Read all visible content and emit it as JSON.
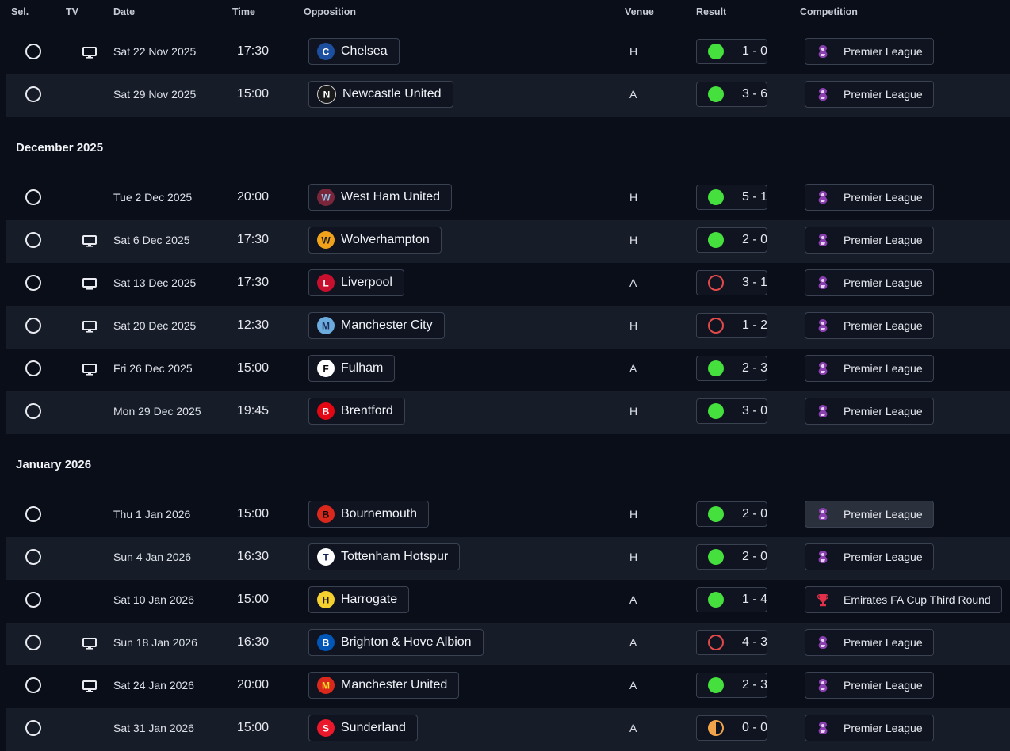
{
  "columns": {
    "sel": "Sel.",
    "tv": "TV",
    "date": "Date",
    "time": "Time",
    "opposition": "Opposition",
    "venue": "Venue",
    "result": "Result",
    "competition": "Competition"
  },
  "colors": {
    "win": "#45e03d",
    "loss": "#e24a4a",
    "draw": "#f2a44a",
    "background": "#0a0e19",
    "row_alt": "#161c28"
  },
  "icons": {
    "tv": "tv-icon",
    "premier_league": "premier-league-icon",
    "fa_cup": "fa-cup-icon"
  },
  "groups": [
    {
      "month": "",
      "fixtures": [
        {
          "tv": true,
          "date": "Sat 22 Nov 2025",
          "time": "17:30",
          "opponent": "Chelsea",
          "crest": "chelsea-crest-icon",
          "venue": "H",
          "outcome": "win",
          "score": "1 - 0",
          "competition": "Premier League",
          "comp_icon": "premier-league-icon"
        },
        {
          "tv": false,
          "date": "Sat 29 Nov 2025",
          "time": "15:00",
          "opponent": "Newcastle United",
          "crest": "newcastle-crest-icon",
          "venue": "A",
          "outcome": "win",
          "score": "3 - 6",
          "competition": "Premier League",
          "comp_icon": "premier-league-icon"
        }
      ]
    },
    {
      "month": "December 2025",
      "fixtures": [
        {
          "tv": false,
          "date": "Tue 2 Dec 2025",
          "time": "20:00",
          "opponent": "West Ham United",
          "crest": "west-ham-crest-icon",
          "venue": "H",
          "outcome": "win",
          "score": "5 - 1",
          "competition": "Premier League",
          "comp_icon": "premier-league-icon"
        },
        {
          "tv": true,
          "date": "Sat 6 Dec 2025",
          "time": "17:30",
          "opponent": "Wolverhampton",
          "crest": "wolves-crest-icon",
          "venue": "H",
          "outcome": "win",
          "score": "2 - 0",
          "competition": "Premier League",
          "comp_icon": "premier-league-icon"
        },
        {
          "tv": true,
          "date": "Sat 13 Dec 2025",
          "time": "17:30",
          "opponent": "Liverpool",
          "crest": "liverpool-crest-icon",
          "venue": "A",
          "outcome": "loss",
          "score": "3 - 1",
          "competition": "Premier League",
          "comp_icon": "premier-league-icon"
        },
        {
          "tv": true,
          "date": "Sat 20 Dec 2025",
          "time": "12:30",
          "opponent": "Manchester City",
          "crest": "man-city-crest-icon",
          "venue": "H",
          "outcome": "loss",
          "score": "1 - 2",
          "competition": "Premier League",
          "comp_icon": "premier-league-icon"
        },
        {
          "tv": true,
          "date": "Fri 26 Dec 2025",
          "time": "15:00",
          "opponent": "Fulham",
          "crest": "fulham-crest-icon",
          "venue": "A",
          "outcome": "win",
          "score": "2 - 3",
          "competition": "Premier League",
          "comp_icon": "premier-league-icon"
        },
        {
          "tv": false,
          "date": "Mon 29 Dec 2025",
          "time": "19:45",
          "opponent": "Brentford",
          "crest": "brentford-crest-icon",
          "venue": "H",
          "outcome": "win",
          "score": "3 - 0",
          "competition": "Premier League",
          "comp_icon": "premier-league-icon"
        }
      ]
    },
    {
      "month": "January 2026",
      "fixtures": [
        {
          "tv": false,
          "date": "Thu 1 Jan 2026",
          "time": "15:00",
          "opponent": "Bournemouth",
          "crest": "bournemouth-crest-icon",
          "venue": "H",
          "outcome": "win",
          "score": "2 - 0",
          "competition": "Premier League",
          "comp_icon": "premier-league-icon",
          "highlight": true
        },
        {
          "tv": false,
          "date": "Sun 4 Jan 2026",
          "time": "16:30",
          "opponent": "Tottenham Hotspur",
          "crest": "tottenham-crest-icon",
          "venue": "H",
          "outcome": "win",
          "score": "2 - 0",
          "competition": "Premier League",
          "comp_icon": "premier-league-icon"
        },
        {
          "tv": false,
          "date": "Sat 10 Jan 2026",
          "time": "15:00",
          "opponent": "Harrogate",
          "crest": "harrogate-crest-icon",
          "venue": "A",
          "outcome": "win",
          "score": "1 - 4",
          "competition": "Emirates FA Cup Third Round",
          "comp_icon": "fa-cup-icon"
        },
        {
          "tv": true,
          "date": "Sun 18 Jan 2026",
          "time": "16:30",
          "opponent": "Brighton & Hove Albion",
          "crest": "brighton-crest-icon",
          "venue": "A",
          "outcome": "loss",
          "score": "4 - 3",
          "competition": "Premier League",
          "comp_icon": "premier-league-icon"
        },
        {
          "tv": true,
          "date": "Sat 24 Jan 2026",
          "time": "20:00",
          "opponent": "Manchester United",
          "crest": "man-united-crest-icon",
          "venue": "A",
          "outcome": "win",
          "score": "2 - 3",
          "competition": "Premier League",
          "comp_icon": "premier-league-icon"
        },
        {
          "tv": false,
          "date": "Sat 31 Jan 2026",
          "time": "15:00",
          "opponent": "Sunderland",
          "crest": "sunderland-crest-icon",
          "venue": "A",
          "outcome": "draw",
          "score": "0 - 0",
          "competition": "Premier League",
          "comp_icon": "premier-league-icon"
        }
      ]
    }
  ]
}
